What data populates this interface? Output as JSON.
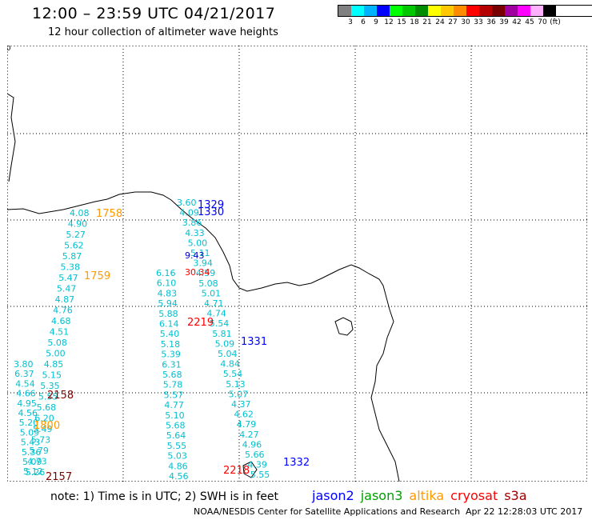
{
  "header": {
    "title": "12:00 – 23:59 UTC 04/21/2017",
    "subtitle": "12 hour collection of altimeter wave heights"
  },
  "legend": {
    "colors": [
      "#808080",
      "#00ffff",
      "#00b3ff",
      "#0000ff",
      "#00ff00",
      "#00c800",
      "#008c00",
      "#ffff00",
      "#ffc800",
      "#ff8c00",
      "#ff0000",
      "#b40000",
      "#780000",
      "#a000a0",
      "#ff00ff",
      "#ffb0ff",
      "#000000"
    ],
    "labels": [
      "3",
      "6",
      "9",
      "12",
      "15",
      "18",
      "21",
      "24",
      "27",
      "30",
      "33",
      "36",
      "39",
      "42",
      "45",
      "70",
      "(ft)"
    ]
  },
  "axes": {
    "x_ticks": [
      "0",
      "3",
      "6",
      "9",
      "12",
      "15"
    ],
    "y_ticks": [
      "0",
      "2",
      "4",
      "6",
      "10"
    ]
  },
  "passes": [
    {
      "time": "1758",
      "color": "#ff9900"
    },
    {
      "time": "1759",
      "color": "#ff9900"
    },
    {
      "time": "1800",
      "color": "#ff9900"
    },
    {
      "time": "2158",
      "color": "#800000"
    },
    {
      "time": "2157",
      "color": "#800000"
    },
    {
      "time": "2219",
      "color": "#ff0000"
    },
    {
      "time": "2218",
      "color": "#ff0000"
    },
    {
      "time": "1329",
      "color": "#0000ff"
    },
    {
      "time": "1330",
      "color": "#0000ff"
    },
    {
      "time": "1331",
      "color": "#0000ff"
    },
    {
      "time": "1332",
      "color": "#0000ff"
    }
  ],
  "tracks": {
    "altika_west": [
      "4.08",
      "4.90",
      "5.27",
      "5.62",
      "5.87",
      "5.38",
      "5.47",
      "5.47",
      "4.87",
      "4.76",
      "4.68",
      "4.51",
      "5.08",
      "5.00",
      "4.85",
      "5.15",
      "5.35",
      "5.55",
      "5.68",
      "6.20",
      "5.49",
      "5.73",
      "5.79",
      "4.73",
      "5.26"
    ],
    "altika_west2": [
      "3.80",
      "6.37",
      "4.54",
      "4.66",
      "4.95",
      "4.56",
      "5.20",
      "5.09",
      "5.43",
      "5.36",
      "5.09",
      "5.12"
    ],
    "cryosat_mid": [
      "6.16",
      "6.10",
      "4.83",
      "5.94",
      "5.88",
      "6.14",
      "5.40",
      "5.18",
      "5.39",
      "6.31",
      "5.68",
      "5.78",
      "5.57",
      "4.77",
      "5.10",
      "5.68",
      "5.64",
      "5.55",
      "5.03",
      "4.86",
      "4.56"
    ],
    "jason_east": [
      "3.60",
      "4.09",
      "3.86",
      "4.33",
      "5.00",
      "5.11",
      "3.94",
      "4.59",
      "5.08",
      "5.01",
      "4.71",
      "4.74",
      "5.54",
      "5.81",
      "5.09",
      "5.04",
      "4.84",
      "5.54",
      "5.13",
      "5.07",
      "4.37",
      "4.62",
      "4.79",
      "4.27",
      "4.96",
      "5.66",
      "4.39",
      "5.55",
      "5.01",
      "5.73"
    ],
    "special": [
      {
        "value": "9.43",
        "color": "#0000c8"
      },
      {
        "value": "30.34",
        "color": "#ff0000"
      }
    ]
  },
  "footer": {
    "note": "note:  1) Time is in UTC;  2) SWH is in feet",
    "satellites": [
      {
        "name": "jason2",
        "color": "#0000ff"
      },
      {
        "name": "jason3",
        "color": "#00a000"
      },
      {
        "name": "altika",
        "color": "#ff9900"
      },
      {
        "name": "cryosat",
        "color": "#ff0000"
      },
      {
        "name": "s3a",
        "color": "#a00000"
      }
    ],
    "credit": "NOAA/NESDIS Center for Satellite Applications and Research",
    "timestamp": "Apr 22 12:28:03 UTC 2017"
  }
}
